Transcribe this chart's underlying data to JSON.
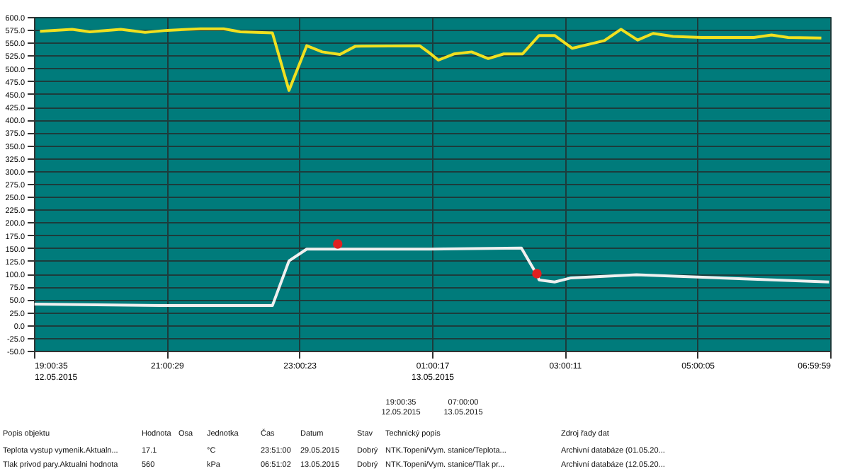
{
  "chart_data": {
    "type": "line",
    "xlim": [
      "2015-05-12T19:00:35",
      "2015-05-13T06:59:59"
    ],
    "xticks": [
      {
        "value": "2015-05-12T19:00:35",
        "label": "19:00:35\n12.05.2015"
      },
      {
        "value": "2015-05-12T21:00:29",
        "label": "21:00:29"
      },
      {
        "value": "2015-05-12T23:00:23",
        "label": "23:00:23"
      },
      {
        "value": "2015-05-13T01:00:17",
        "label": "01:00:17\n13.05.2015"
      },
      {
        "value": "2015-05-13T03:00:11",
        "label": "03:00:11"
      },
      {
        "value": "2015-05-13T05:00:05",
        "label": "05:00:05"
      },
      {
        "value": "2015-05-13T06:59:59",
        "label": "06:59:59"
      }
    ],
    "ylim": [
      -50,
      600
    ],
    "yticks": [
      {
        "value": -50,
        "label": "-50.0"
      },
      {
        "value": -25,
        "label": "-25.0"
      },
      {
        "value": 0,
        "label": "0.0"
      },
      {
        "value": 25,
        "label": "25.0"
      },
      {
        "value": 50,
        "label": "50.0"
      },
      {
        "value": 75,
        "label": "75.0"
      },
      {
        "value": 100,
        "label": "100.0"
      },
      {
        "value": 125,
        "label": "125.0"
      },
      {
        "value": 150,
        "label": "150.0"
      },
      {
        "value": 175,
        "label": "175.0"
      },
      {
        "value": 200,
        "label": "200.0"
      },
      {
        "value": 225,
        "label": "225.0"
      },
      {
        "value": 250,
        "label": "250.0"
      },
      {
        "value": 275,
        "label": "275.0"
      },
      {
        "value": 300,
        "label": "300.0"
      },
      {
        "value": 325,
        "label": "325.0"
      },
      {
        "value": 350,
        "label": "350.0"
      },
      {
        "value": 375,
        "label": "375.0"
      },
      {
        "value": 400,
        "label": "400.0"
      },
      {
        "value": 425,
        "label": "425.0"
      },
      {
        "value": 450,
        "label": "450.0"
      },
      {
        "value": 475,
        "label": "475.0"
      },
      {
        "value": 500,
        "label": "500.0"
      },
      {
        "value": 525,
        "label": "525.0"
      },
      {
        "value": 550,
        "label": "550.0"
      },
      {
        "value": 575,
        "label": "575.0"
      },
      {
        "value": 600,
        "label": "600.0"
      }
    ],
    "grid": true,
    "line_style": "solid",
    "marker": "none",
    "series": [
      {
        "color": "#f0e020",
        "x": [
          "2015-05-12T19:06",
          "2015-05-12T19:35",
          "2015-05-12T19:51",
          "2015-05-12T20:19",
          "2015-05-12T20:41",
          "2015-05-12T21:01",
          "2015-05-12T21:31",
          "2015-05-12T21:52",
          "2015-05-12T22:07",
          "2015-05-12T22:36",
          "2015-05-12T22:51",
          "2015-05-12T23:07",
          "2015-05-12T23:21",
          "2015-05-12T23:37",
          "2015-05-12T23:51",
          "2015-05-13T00:49",
          "2015-05-13T00:58",
          "2015-05-13T01:06",
          "2015-05-13T01:20",
          "2015-05-13T01:36",
          "2015-05-13T01:51",
          "2015-05-13T02:05",
          "2015-05-13T02:22",
          "2015-05-13T02:37",
          "2015-05-13T02:51",
          "2015-05-13T03:07",
          "2015-05-13T03:36",
          "2015-05-13T03:51",
          "2015-05-13T04:06",
          "2015-05-13T04:20",
          "2015-05-13T04:38",
          "2015-05-13T05:04",
          "2015-05-13T05:51",
          "2015-05-13T06:07",
          "2015-05-13T06:22",
          "2015-05-13T06:52"
        ],
        "values": [
          572,
          576,
          571,
          576,
          570,
          574,
          577,
          577,
          571,
          569,
          457,
          544,
          532,
          527,
          543,
          544,
          530,
          516,
          528,
          532,
          519,
          528,
          528,
          564,
          564,
          539,
          554,
          576,
          555,
          568,
          562,
          560,
          560,
          565,
          560,
          559
        ]
      },
      {
        "color": "#f0f0f0",
        "x": [
          "2015-05-12T19:01",
          "2015-05-12T20:54",
          "2015-05-12T22:36",
          "2015-05-12T22:51",
          "2015-05-12T23:07",
          "2015-05-13T00:58",
          "2015-05-13T02:21",
          "2015-05-13T02:35",
          "2015-05-13T02:37",
          "2015-05-13T02:51",
          "2015-05-13T03:06",
          "2015-05-13T04:05",
          "2015-05-13T06:59"
        ],
        "values": [
          41,
          38,
          38,
          125,
          148,
          148,
          150,
          98,
          88,
          84,
          92,
          98,
          84
        ]
      },
      {
        "type": "scatter",
        "marker": "circle",
        "color": "#e02020",
        "x": [
          "2015-05-12T23:35",
          "2015-05-13T02:35"
        ],
        "values": [
          158,
          100
        ]
      }
    ],
    "annotations": [
      "19:00:35\n12.05.2015",
      "07:00:00\n13.05.2015",
      "Popis objektu",
      "Hodnota",
      "Osa",
      "Jednotka",
      "Čas",
      "Datum",
      "Stav",
      "Technický popis",
      "Zdroj řady dat",
      "Teplota vystup vymenik.Aktualn...",
      "17.1",
      "°C",
      "23:51:00",
      "29.05.2015",
      "Dobrý",
      "NTK.Topeni/Vym. stanice/Teplota...",
      "Archivní databáze (01.05.20...",
      "Tlak privod pary.Aktualni hodnota",
      "560",
      "kPa",
      "06:51:02",
      "13.05.2015",
      "Dobrý",
      "NTK.Topeni/Vym. stanice/Tlak pr...",
      "Archivní databáze (12.05.20..."
    ]
  }
}
